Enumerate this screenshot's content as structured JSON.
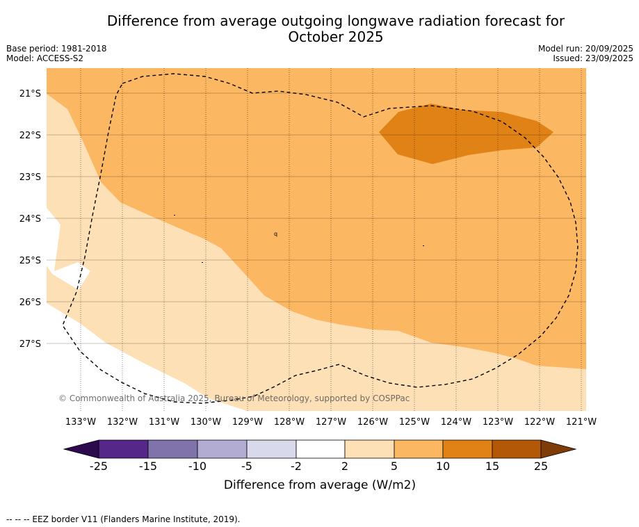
{
  "title": {
    "line1": "Difference from average outgoing longwave radiation forecast for",
    "line2": "October 2025"
  },
  "meta": {
    "base_period": "Base period: 1981-2018",
    "model": "Model: ACCESS-S2",
    "model_run": "Model run: 20/09/2025",
    "issued": "Issued: 23/09/2025"
  },
  "map": {
    "lat_labels": [
      "21°S",
      "22°S",
      "23°S",
      "24°S",
      "25°S",
      "26°S",
      "27°S"
    ],
    "lon_labels": [
      "133°W",
      "132°W",
      "131°W",
      "130°W",
      "129°W",
      "128°W",
      "127°W",
      "126°W",
      "125°W",
      "124°W",
      "123°W",
      "122°W",
      "121°W"
    ],
    "watermark": "© Commonwealth of Australia 2025, Bureau of Meteorology, supported by COSPPac",
    "island_label": "q",
    "colors": {
      "band_2_5": "#fde0b6",
      "band_5_10": "#fbb762",
      "band_10_15": "#e08216",
      "eez_border": "#000000"
    }
  },
  "colorbar": {
    "ticks": [
      "-25",
      "-15",
      "-10",
      "-5",
      "-2",
      "2",
      "5",
      "10",
      "15",
      "25"
    ],
    "title": "Difference from average (W/m2)",
    "colors": [
      "#2d0a4e",
      "#542788",
      "#8073ac",
      "#b2abd2",
      "#d8daeb",
      "#ffffff",
      "#fde0b6",
      "#fbb762",
      "#e08216",
      "#b35806",
      "#7f3b08"
    ]
  },
  "footnote": "--  --  -- EEZ border V11 (Flanders Marine Institute, 2019)."
}
